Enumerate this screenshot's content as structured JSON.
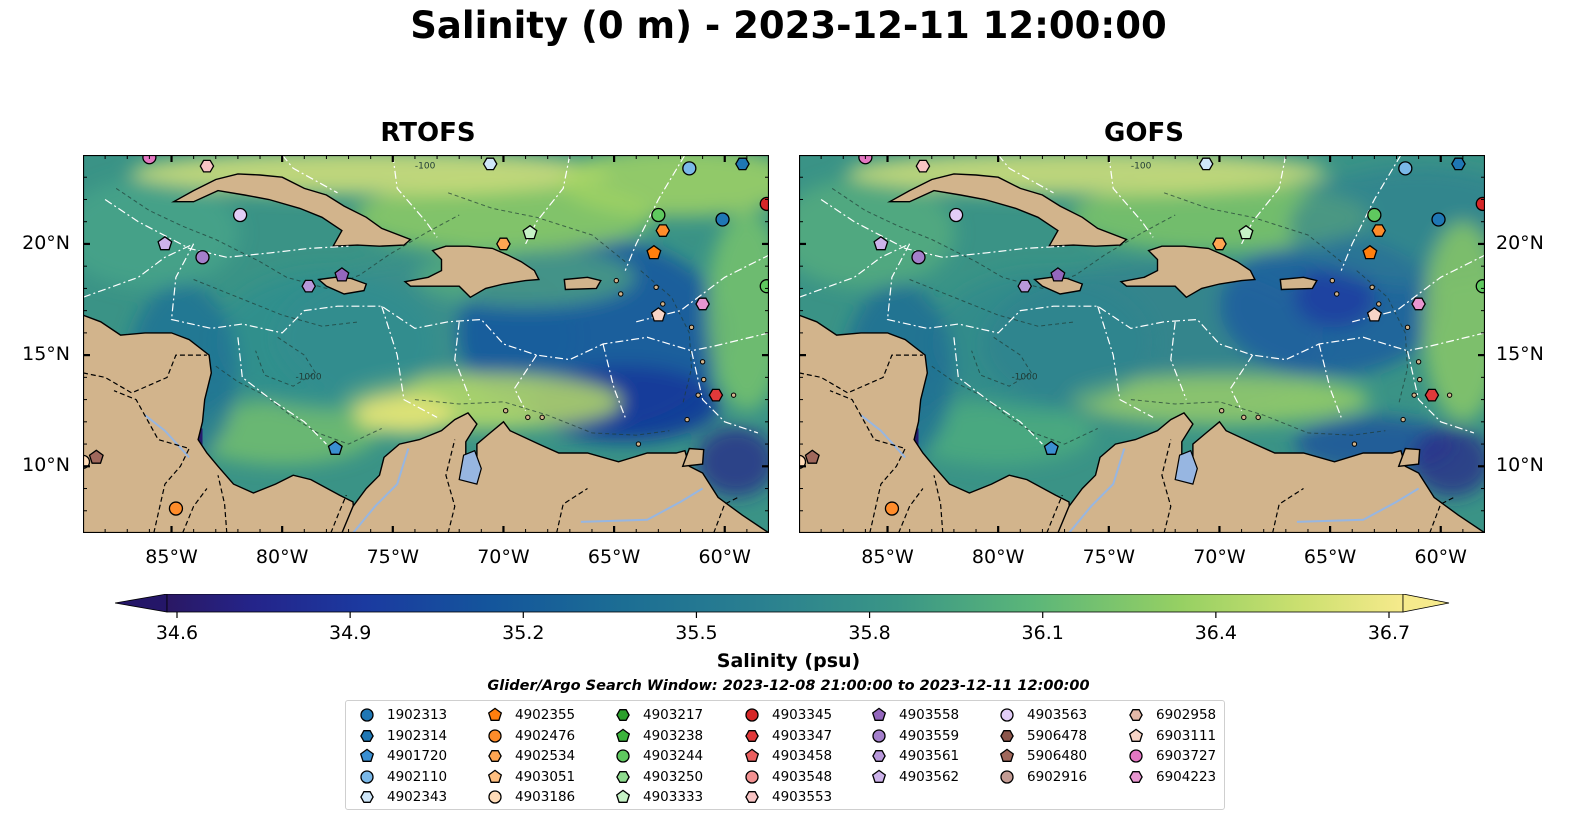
{
  "title": "Salinity (0 m) - 2023-12-11 12:00:00",
  "panels": [
    {
      "title": "RTOFS",
      "id": "rtofs"
    },
    {
      "title": "GOFS",
      "id": "gofs"
    }
  ],
  "map_extent": {
    "lon": [
      -89,
      -58
    ],
    "lat": [
      7,
      24
    ]
  },
  "lon_ticks": [
    "85°W",
    "80°W",
    "75°W",
    "70°W",
    "65°W",
    "60°W"
  ],
  "lat_ticks": [
    "20°N",
    "15°N",
    "10°N"
  ],
  "colors": {
    "land": "#d2b48c",
    "lake": "#97b6e1",
    "eez_lines": "#ffffff",
    "borders": "#000000"
  },
  "contour_labels": [
    "-100",
    "-1000"
  ],
  "colorbar": {
    "label": "Salinity (psu)",
    "ticks": [
      "34.6",
      "34.9",
      "35.2",
      "35.5",
      "35.8",
      "36.1",
      "36.4",
      "36.7"
    ],
    "range": [
      34.6,
      36.7
    ],
    "colormap": "haline",
    "extend": "both"
  },
  "legend": {
    "title": "Glider/Argo Search Window: 2023-12-08 21:00:00 to 2023-12-11 12:00:00",
    "columns": [
      [
        {
          "label": "1902313",
          "marker": "circle",
          "color": "#1f77b4"
        },
        {
          "label": "1902314",
          "marker": "hexagon",
          "color": "#1f77b4"
        },
        {
          "label": "4901720",
          "marker": "pentagon",
          "color": "#3a8fd1"
        },
        {
          "label": "4902110",
          "marker": "circle",
          "color": "#7ab8e8"
        },
        {
          "label": "4902343",
          "marker": "hexagon",
          "color": "#cfe6f8"
        }
      ],
      [
        {
          "label": "4902355",
          "marker": "pentagon",
          "color": "#ff7f0e"
        },
        {
          "label": "4902476",
          "marker": "circle",
          "color": "#ff8c2a"
        },
        {
          "label": "4902534",
          "marker": "hexagon",
          "color": "#ffa552"
        },
        {
          "label": "4903051",
          "marker": "pentagon",
          "color": "#ffbf80"
        },
        {
          "label": "4903186",
          "marker": "circle",
          "color": "#ffdcb8"
        }
      ],
      [
        {
          "label": "4903217",
          "marker": "hexagon",
          "color": "#2ca02c"
        },
        {
          "label": "4903238",
          "marker": "pentagon",
          "color": "#3cb33c"
        },
        {
          "label": "4903244",
          "marker": "circle",
          "color": "#5fc95f"
        },
        {
          "label": "4903250",
          "marker": "hexagon",
          "color": "#8fdc8f"
        },
        {
          "label": "4903333",
          "marker": "pentagon",
          "color": "#c6f2c6"
        }
      ],
      [
        {
          "label": "4903345",
          "marker": "circle",
          "color": "#d62728"
        },
        {
          "label": "4903347",
          "marker": "hexagon",
          "color": "#e0393a"
        },
        {
          "label": "4903458",
          "marker": "pentagon",
          "color": "#ea5f5f"
        },
        {
          "label": "4903548",
          "marker": "circle",
          "color": "#f29191"
        },
        {
          "label": "4903553",
          "marker": "hexagon",
          "color": "#f8c4c4"
        }
      ],
      [
        {
          "label": "4903558",
          "marker": "pentagon",
          "color": "#9467bd"
        },
        {
          "label": "4903559",
          "marker": "circle",
          "color": "#a47fcb"
        },
        {
          "label": "4903561",
          "marker": "hexagon",
          "color": "#b898da"
        },
        {
          "label": "4903562",
          "marker": "pentagon",
          "color": "#cdb3ea"
        }
      ],
      [
        {
          "label": "4903563",
          "marker": "circle",
          "color": "#e2cdf6"
        },
        {
          "label": "5906478",
          "marker": "hexagon",
          "color": "#8c564b"
        },
        {
          "label": "5906480",
          "marker": "pentagon",
          "color": "#a0685c"
        },
        {
          "label": "6902916",
          "marker": "circle",
          "color": "#c49c94"
        }
      ],
      [
        {
          "label": "6902958",
          "marker": "hexagon",
          "color": "#e4b8a8"
        },
        {
          "label": "6903111",
          "marker": "pentagon",
          "color": "#f7d5c7"
        },
        {
          "label": "6903727",
          "marker": "circle",
          "color": "#e377c2"
        },
        {
          "label": "6904223",
          "marker": "hexagon",
          "color": "#e896d0"
        }
      ]
    ]
  },
  "observations": [
    {
      "lon": -85.3,
      "lat": 20.0,
      "marker": "pentagon",
      "color": "#cdb3ea"
    },
    {
      "lon": -83.6,
      "lat": 19.4,
      "marker": "circle",
      "color": "#a47fcb"
    },
    {
      "lon": -81.9,
      "lat": 21.3,
      "marker": "circle",
      "color": "#e2cdf6"
    },
    {
      "lon": -83.4,
      "lat": 23.5,
      "marker": "hexagon",
      "color": "#f8c4c4"
    },
    {
      "lon": -78.8,
      "lat": 18.1,
      "marker": "hexagon",
      "color": "#b898da"
    },
    {
      "lon": -77.3,
      "lat": 18.6,
      "marker": "pentagon",
      "color": "#9467bd"
    },
    {
      "lon": -70.0,
      "lat": 20.0,
      "marker": "hexagon",
      "color": "#ffa552"
    },
    {
      "lon": -68.8,
      "lat": 20.5,
      "marker": "pentagon",
      "color": "#c6f2c6"
    },
    {
      "lon": -63.0,
      "lat": 21.3,
      "marker": "circle",
      "color": "#5fc95f"
    },
    {
      "lon": -62.8,
      "lat": 20.6,
      "marker": "hexagon",
      "color": "#ff8c2a"
    },
    {
      "lon": -63.2,
      "lat": 19.6,
      "marker": "pentagon",
      "color": "#ff7f0e"
    },
    {
      "lon": -60.1,
      "lat": 21.1,
      "marker": "circle",
      "color": "#1f77b4"
    },
    {
      "lon": -58.1,
      "lat": 21.8,
      "marker": "circle",
      "color": "#d62728"
    },
    {
      "lon": -61.6,
      "lat": 23.4,
      "marker": "circle",
      "color": "#7ab8e8"
    },
    {
      "lon": -59.2,
      "lat": 23.6,
      "marker": "hexagon",
      "color": "#1f77b4"
    },
    {
      "lon": -70.6,
      "lat": 23.6,
      "marker": "hexagon",
      "color": "#cfe6f8"
    },
    {
      "lon": -61.0,
      "lat": 17.3,
      "marker": "hexagon",
      "color": "#e896d0"
    },
    {
      "lon": -63.0,
      "lat": 16.8,
      "marker": "pentagon",
      "color": "#f7d5c7"
    },
    {
      "lon": -60.4,
      "lat": 13.2,
      "marker": "hexagon",
      "color": "#e0393a"
    },
    {
      "lon": -77.6,
      "lat": 10.8,
      "marker": "pentagon",
      "color": "#3a8fd1"
    },
    {
      "lon": -89.0,
      "lat": 10.2,
      "marker": "circle",
      "color": "#ffdcb8"
    },
    {
      "lon": -88.4,
      "lat": 10.4,
      "marker": "pentagon",
      "color": "#a0685c"
    },
    {
      "lon": -84.8,
      "lat": 8.1,
      "marker": "circle",
      "color": "#ff8c2a"
    },
    {
      "lon": -58.1,
      "lat": 18.1,
      "marker": "circle",
      "color": "#5fc95f"
    },
    {
      "lon": -86.0,
      "lat": 23.9,
      "marker": "circle",
      "color": "#e377c2"
    }
  ]
}
